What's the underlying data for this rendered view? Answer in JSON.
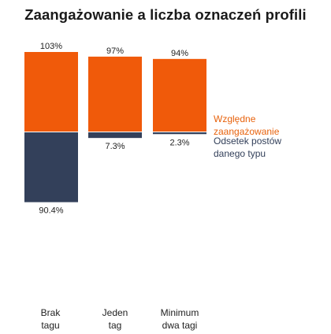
{
  "chart_data": {
    "type": "bar",
    "title": "Zaangażowanie a liczba oznaczeń profili",
    "categories": [
      [
        "Brak",
        "tagu"
      ],
      [
        "Jeden",
        "tag"
      ],
      [
        "Minimum",
        "dwa tagi"
      ]
    ],
    "series": [
      {
        "name": "Względne zaangażowanie",
        "legend_lines": [
          "Względne",
          "zaangażowanie"
        ],
        "values": [
          103,
          97,
          94
        ],
        "labels": [
          "103%",
          "97%",
          "94%"
        ],
        "color": "#f05a0a",
        "direction": "up"
      },
      {
        "name": "Odsetek postów danego typu",
        "legend_lines": [
          "Odsetek postów",
          "danego typu"
        ],
        "values": [
          90.4,
          7.3,
          2.3
        ],
        "labels": [
          "90.4%",
          "7.3%",
          "2.3%"
        ],
        "color": "#33405a",
        "direction": "down"
      }
    ],
    "ylim": [
      0,
      103
    ],
    "grid": false,
    "legend_position": "right"
  }
}
